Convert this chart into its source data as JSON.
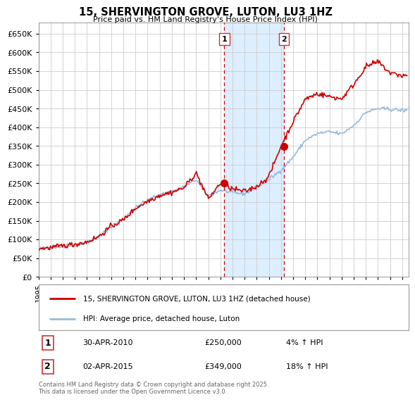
{
  "title": "15, SHERVINGTON GROVE, LUTON, LU3 1HZ",
  "subtitle": "Price paid vs. HM Land Registry's House Price Index (HPI)",
  "legend_line1": "15, SHERVINGTON GROVE, LUTON, LU3 1HZ (detached house)",
  "legend_line2": "HPI: Average price, detached house, Luton",
  "footnote": "Contains HM Land Registry data © Crown copyright and database right 2025.\nThis data is licensed under the Open Government Licence v3.0.",
  "red_color": "#cc0000",
  "blue_color": "#99bbdd",
  "marker1_date": 2010.33,
  "marker1_value": 250000,
  "marker1_label": "1",
  "marker1_text": "30-APR-2010",
  "marker1_price": "£250,000",
  "marker1_hpi": "4% ↑ HPI",
  "marker2_date": 2015.25,
  "marker2_value": 349000,
  "marker2_label": "2",
  "marker2_text": "02-APR-2015",
  "marker2_price": "£349,000",
  "marker2_hpi": "18% ↑ HPI",
  "xmin": 1995,
  "xmax": 2025.5,
  "ymin": 0,
  "ymax": 680000,
  "yticks": [
    0,
    50000,
    100000,
    150000,
    200000,
    250000,
    300000,
    350000,
    400000,
    450000,
    500000,
    550000,
    600000,
    650000
  ],
  "background_color": "#ffffff",
  "grid_color": "#cccccc",
  "shaded_region_color": "#ddeeff",
  "hpi_anchors_years": [
    1995,
    1996,
    1997,
    1998,
    1999,
    2000,
    2001,
    2002,
    2003,
    2004,
    2005,
    2006,
    2007,
    2008,
    2009,
    2010,
    2011,
    2012,
    2013,
    2014,
    2015,
    2016,
    2017,
    2018,
    2019,
    2020,
    2021,
    2022,
    2023,
    2024,
    2025
  ],
  "hpi_anchors_vals": [
    75000,
    78000,
    82000,
    86000,
    92000,
    108000,
    135000,
    155000,
    185000,
    205000,
    220000,
    228000,
    240000,
    260000,
    215000,
    232000,
    225000,
    222000,
    238000,
    260000,
    285000,
    320000,
    365000,
    383000,
    388000,
    382000,
    405000,
    440000,
    450000,
    448000,
    445000
  ],
  "prop_anchors_years": [
    1995,
    1996,
    1997,
    1998,
    1999,
    2000,
    2001,
    2002,
    2003,
    2004,
    2005,
    2006,
    2007,
    2008,
    2009,
    2010,
    2011,
    2012,
    2013,
    2014,
    2015,
    2016,
    2017,
    2018,
    2019,
    2020,
    2021,
    2022,
    2023,
    2024,
    2025
  ],
  "prop_anchors_vals": [
    75000,
    78000,
    83000,
    87000,
    93000,
    108000,
    135000,
    152000,
    183000,
    202000,
    218000,
    226000,
    238000,
    278000,
    208000,
    250000,
    235000,
    228000,
    242000,
    268000,
    349000,
    415000,
    475000,
    490000,
    482000,
    476000,
    515000,
    562000,
    575000,
    545000,
    538000
  ],
  "noise_seed": 42,
  "noise_hpi": 2500,
  "noise_prop": 3500
}
